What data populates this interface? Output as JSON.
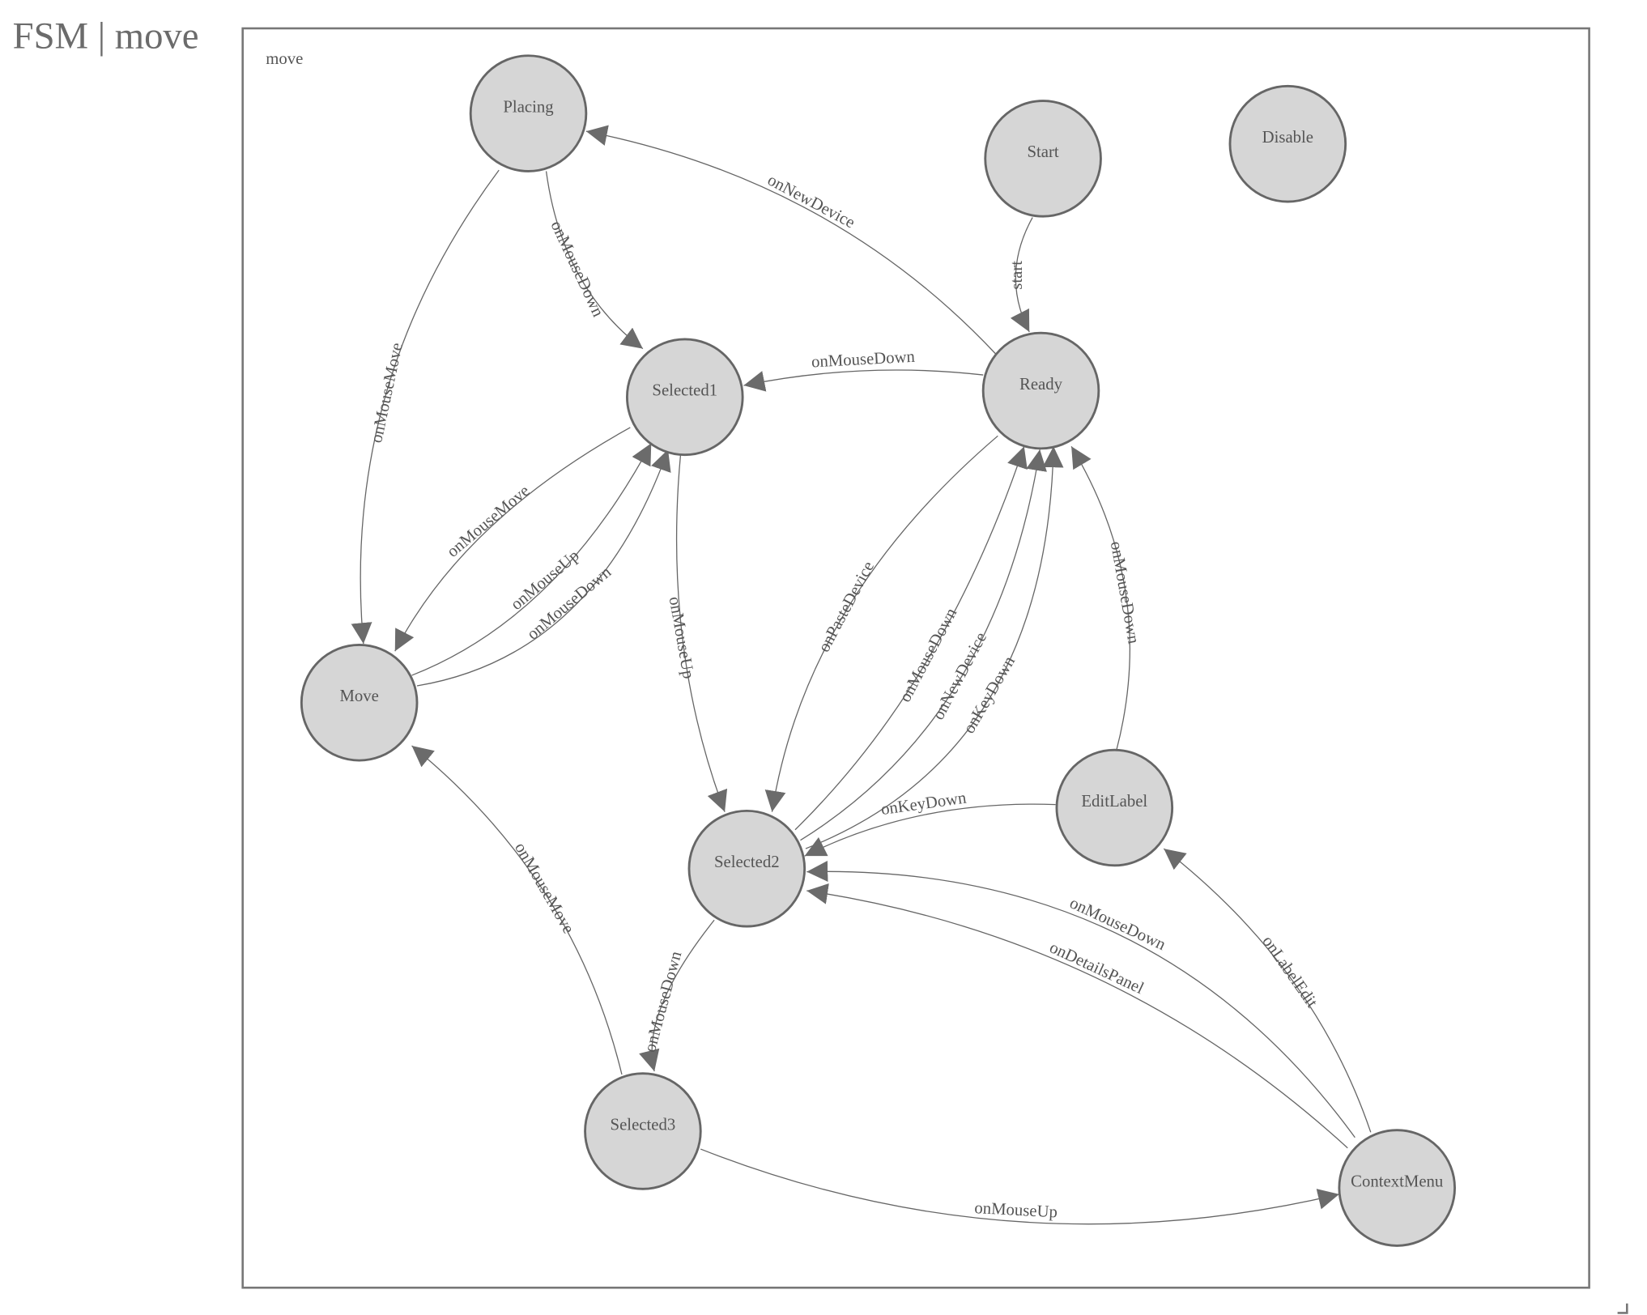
{
  "page": {
    "title": "FSM | move"
  },
  "diagram": {
    "frame_label": "move",
    "colors": {
      "node_fill": "#d6d6d6",
      "stroke": "#666666",
      "text": "#555555"
    },
    "nodes": [
      {
        "id": "Placing",
        "label": "Placing"
      },
      {
        "id": "Start",
        "label": "Start"
      },
      {
        "id": "Disable",
        "label": "Disable"
      },
      {
        "id": "Selected1",
        "label": "Selected1"
      },
      {
        "id": "Ready",
        "label": "Ready"
      },
      {
        "id": "Move",
        "label": "Move"
      },
      {
        "id": "EditLabel",
        "label": "EditLabel"
      },
      {
        "id": "Selected2",
        "label": "Selected2"
      },
      {
        "id": "Selected3",
        "label": "Selected3"
      },
      {
        "id": "ContextMenu",
        "label": "ContextMenu"
      }
    ],
    "edges": [
      {
        "from": "Ready",
        "to": "Placing",
        "label": "onNewDevice"
      },
      {
        "from": "Placing",
        "to": "Selected1",
        "label": "onMouseDown"
      },
      {
        "from": "Placing",
        "to": "Move",
        "label": "onMouseMove"
      },
      {
        "from": "Start",
        "to": "Ready",
        "label": "start"
      },
      {
        "from": "Ready",
        "to": "Selected1",
        "label": "onMouseDown"
      },
      {
        "from": "Selected1",
        "to": "Move",
        "label": "onMouseMove"
      },
      {
        "from": "Move",
        "to": "Selected1",
        "label": "onMouseUp"
      },
      {
        "from": "Move",
        "to": "Selected1",
        "label": "onMouseDown"
      },
      {
        "from": "Selected1",
        "to": "Selected2",
        "label": "onMouseUp"
      },
      {
        "from": "Ready",
        "to": "Selected2",
        "label": "onPasteDevice"
      },
      {
        "from": "Selected2",
        "to": "Ready",
        "label": "onMouseDown"
      },
      {
        "from": "Selected2",
        "to": "Ready",
        "label": "onNewDevice"
      },
      {
        "from": "Selected2",
        "to": "Ready",
        "label": "onKeyDown"
      },
      {
        "from": "EditLabel",
        "to": "Ready",
        "label": "onMouseDown"
      },
      {
        "from": "EditLabel",
        "to": "Selected2",
        "label": "onKeyDown"
      },
      {
        "from": "ContextMenu",
        "to": "Selected2",
        "label": "onMouseDown"
      },
      {
        "from": "ContextMenu",
        "to": "Selected2",
        "label": "onDetailsPanel"
      },
      {
        "from": "ContextMenu",
        "to": "EditLabel",
        "label": "onLabelEdit"
      },
      {
        "from": "Selected2",
        "to": "Selected3",
        "label": "onMouseDown"
      },
      {
        "from": "Selected3",
        "to": "Move",
        "label": "onMouseMove"
      },
      {
        "from": "Selected3",
        "to": "ContextMenu",
        "label": "onMouseUp"
      }
    ]
  }
}
